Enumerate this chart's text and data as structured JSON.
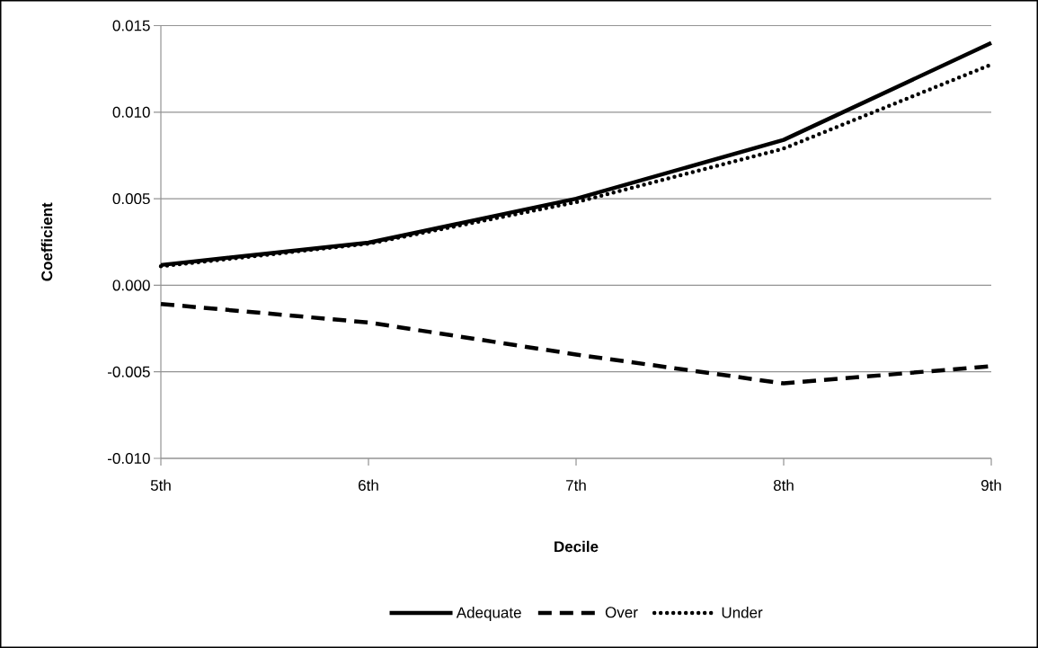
{
  "chart_data": {
    "type": "line",
    "xlabel": "Decile",
    "ylabel": "Coefficient",
    "categories": [
      "5th",
      "6th",
      "7th",
      "8th",
      "9th"
    ],
    "series": [
      {
        "name": "Adequate",
        "color": "#000000",
        "line_style": "solid",
        "values": [
          0.00117,
          0.00246,
          0.005,
          0.0084,
          0.014
        ]
      },
      {
        "name": "Over",
        "color": "#000000",
        "line_style": "dashed",
        "values": [
          -0.00108,
          -0.00215,
          -0.004,
          -0.00567,
          -0.00467
        ]
      },
      {
        "name": "Under",
        "color": "#000000",
        "line_style": "dotted",
        "values": [
          0.0011,
          0.0024,
          0.0048,
          0.0079,
          0.01275
        ]
      }
    ],
    "ylim": [
      -0.01,
      0.015
    ],
    "yticks": [
      {
        "value": -0.01,
        "label": "-0.010"
      },
      {
        "value": -0.005,
        "label": "-0.005"
      },
      {
        "value": 0,
        "label": "0.000"
      },
      {
        "value": 0.005,
        "label": "0.005"
      },
      {
        "value": 0.01,
        "label": "0.010"
      },
      {
        "value": 0.015,
        "label": "0.015"
      }
    ],
    "grid": "y",
    "legend": "bottom",
    "marker": "none"
  }
}
